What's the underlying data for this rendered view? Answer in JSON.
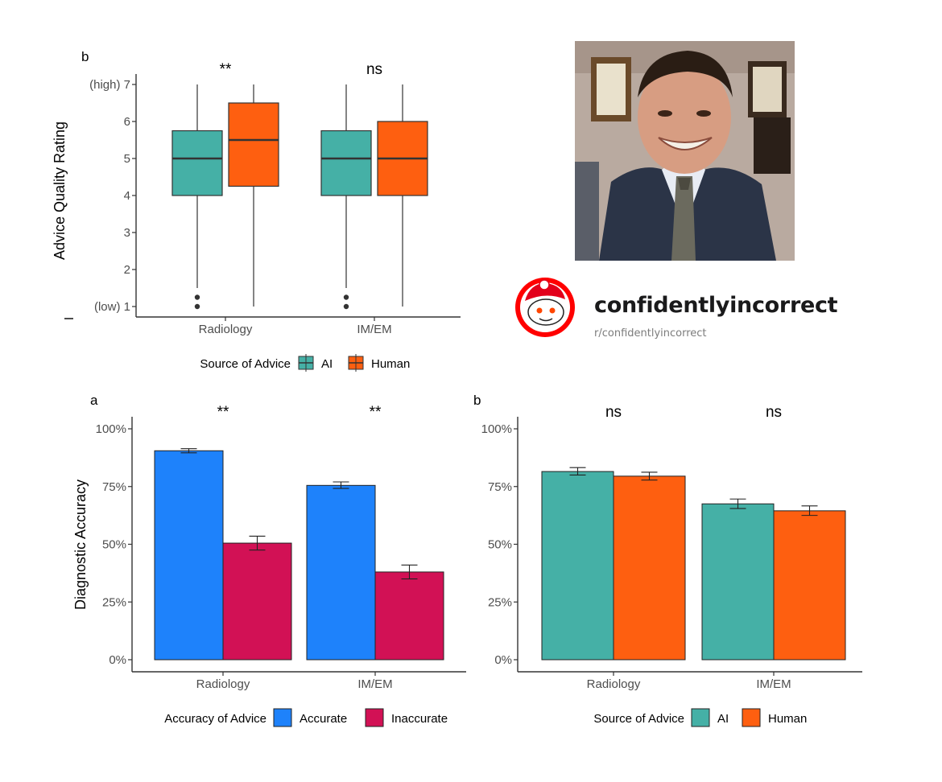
{
  "colors": {
    "ai": "#45b0a6",
    "human": "#fe5f10",
    "accurate": "#1e82fb",
    "inaccurate": "#d21155",
    "axis": "#333333"
  },
  "meme": {
    "subreddit_name": "confidentlyincorrect",
    "subreddit_path": "r/confidentlyincorrect"
  },
  "chart_data": [
    {
      "panel": "b",
      "type": "box",
      "ylabel": "Advice Quality Rating",
      "ylim": [
        1,
        7
      ],
      "y_ticks": [
        {
          "v": 1,
          "label": "(low) 1"
        },
        {
          "v": 2,
          "label": "2"
        },
        {
          "v": 3,
          "label": "3"
        },
        {
          "v": 4,
          "label": "4"
        },
        {
          "v": 5,
          "label": "5"
        },
        {
          "v": 6,
          "label": "6"
        },
        {
          "v": 7,
          "label": "(high) 7"
        }
      ],
      "categories": [
        "Radiology",
        "IM/EM"
      ],
      "significance": [
        "**",
        "ns"
      ],
      "legend_title": "Source of Advice",
      "legend_position": "bottom",
      "series": [
        {
          "name": "AI",
          "color_key": "ai",
          "boxes": [
            {
              "min": 1.5,
              "q1": 4,
              "median": 5,
              "q3": 5.75,
              "max": 7,
              "outliers": [
                1,
                1.25
              ]
            },
            {
              "min": 1.5,
              "q1": 4,
              "median": 5,
              "q3": 5.75,
              "max": 7,
              "outliers": [
                1,
                1.25
              ]
            }
          ]
        },
        {
          "name": "Human",
          "color_key": "human",
          "boxes": [
            {
              "min": 1,
              "q1": 4.25,
              "median": 5.5,
              "q3": 6.5,
              "max": 7,
              "outliers": []
            },
            {
              "min": 1,
              "q1": 4,
              "median": 5,
              "q3": 6,
              "max": 7,
              "outliers": []
            }
          ]
        }
      ]
    },
    {
      "panel": "a",
      "type": "bar",
      "ylabel": "Diagnostic Accuracy",
      "ylim": [
        0,
        100
      ],
      "y_ticks": [
        "0%",
        "25%",
        "50%",
        "75%",
        "100%"
      ],
      "categories": [
        "Radiology",
        "IM/EM"
      ],
      "significance": [
        "**",
        "**"
      ],
      "legend_title": "Accuracy of Advice",
      "legend_position": "bottom",
      "series": [
        {
          "name": "Accurate",
          "color_key": "accurate",
          "values": [
            90.5,
            75.5
          ],
          "err_low": [
            89.6,
            74.2
          ],
          "err_high": [
            91.4,
            77.0
          ]
        },
        {
          "name": "Inaccurate",
          "color_key": "inaccurate",
          "values": [
            50.5,
            38.0
          ],
          "err_low": [
            47.5,
            35.0
          ],
          "err_high": [
            53.5,
            41.0
          ]
        }
      ]
    },
    {
      "panel": "b",
      "type": "bar",
      "ylabel": "",
      "ylim": [
        0,
        100
      ],
      "y_ticks": [
        "0%",
        "25%",
        "50%",
        "75%",
        "100%"
      ],
      "categories": [
        "Radiology",
        "IM/EM"
      ],
      "significance": [
        "ns",
        "ns"
      ],
      "legend_title": "Source of Advice",
      "legend_position": "bottom",
      "series": [
        {
          "name": "AI",
          "color_key": "ai",
          "values": [
            81.5,
            67.5
          ],
          "err_low": [
            80.0,
            65.5
          ],
          "err_high": [
            83.2,
            69.6
          ]
        },
        {
          "name": "Human",
          "color_key": "human",
          "values": [
            79.5,
            64.5
          ],
          "err_low": [
            77.8,
            62.5
          ],
          "err_high": [
            81.2,
            66.6
          ]
        }
      ]
    }
  ]
}
